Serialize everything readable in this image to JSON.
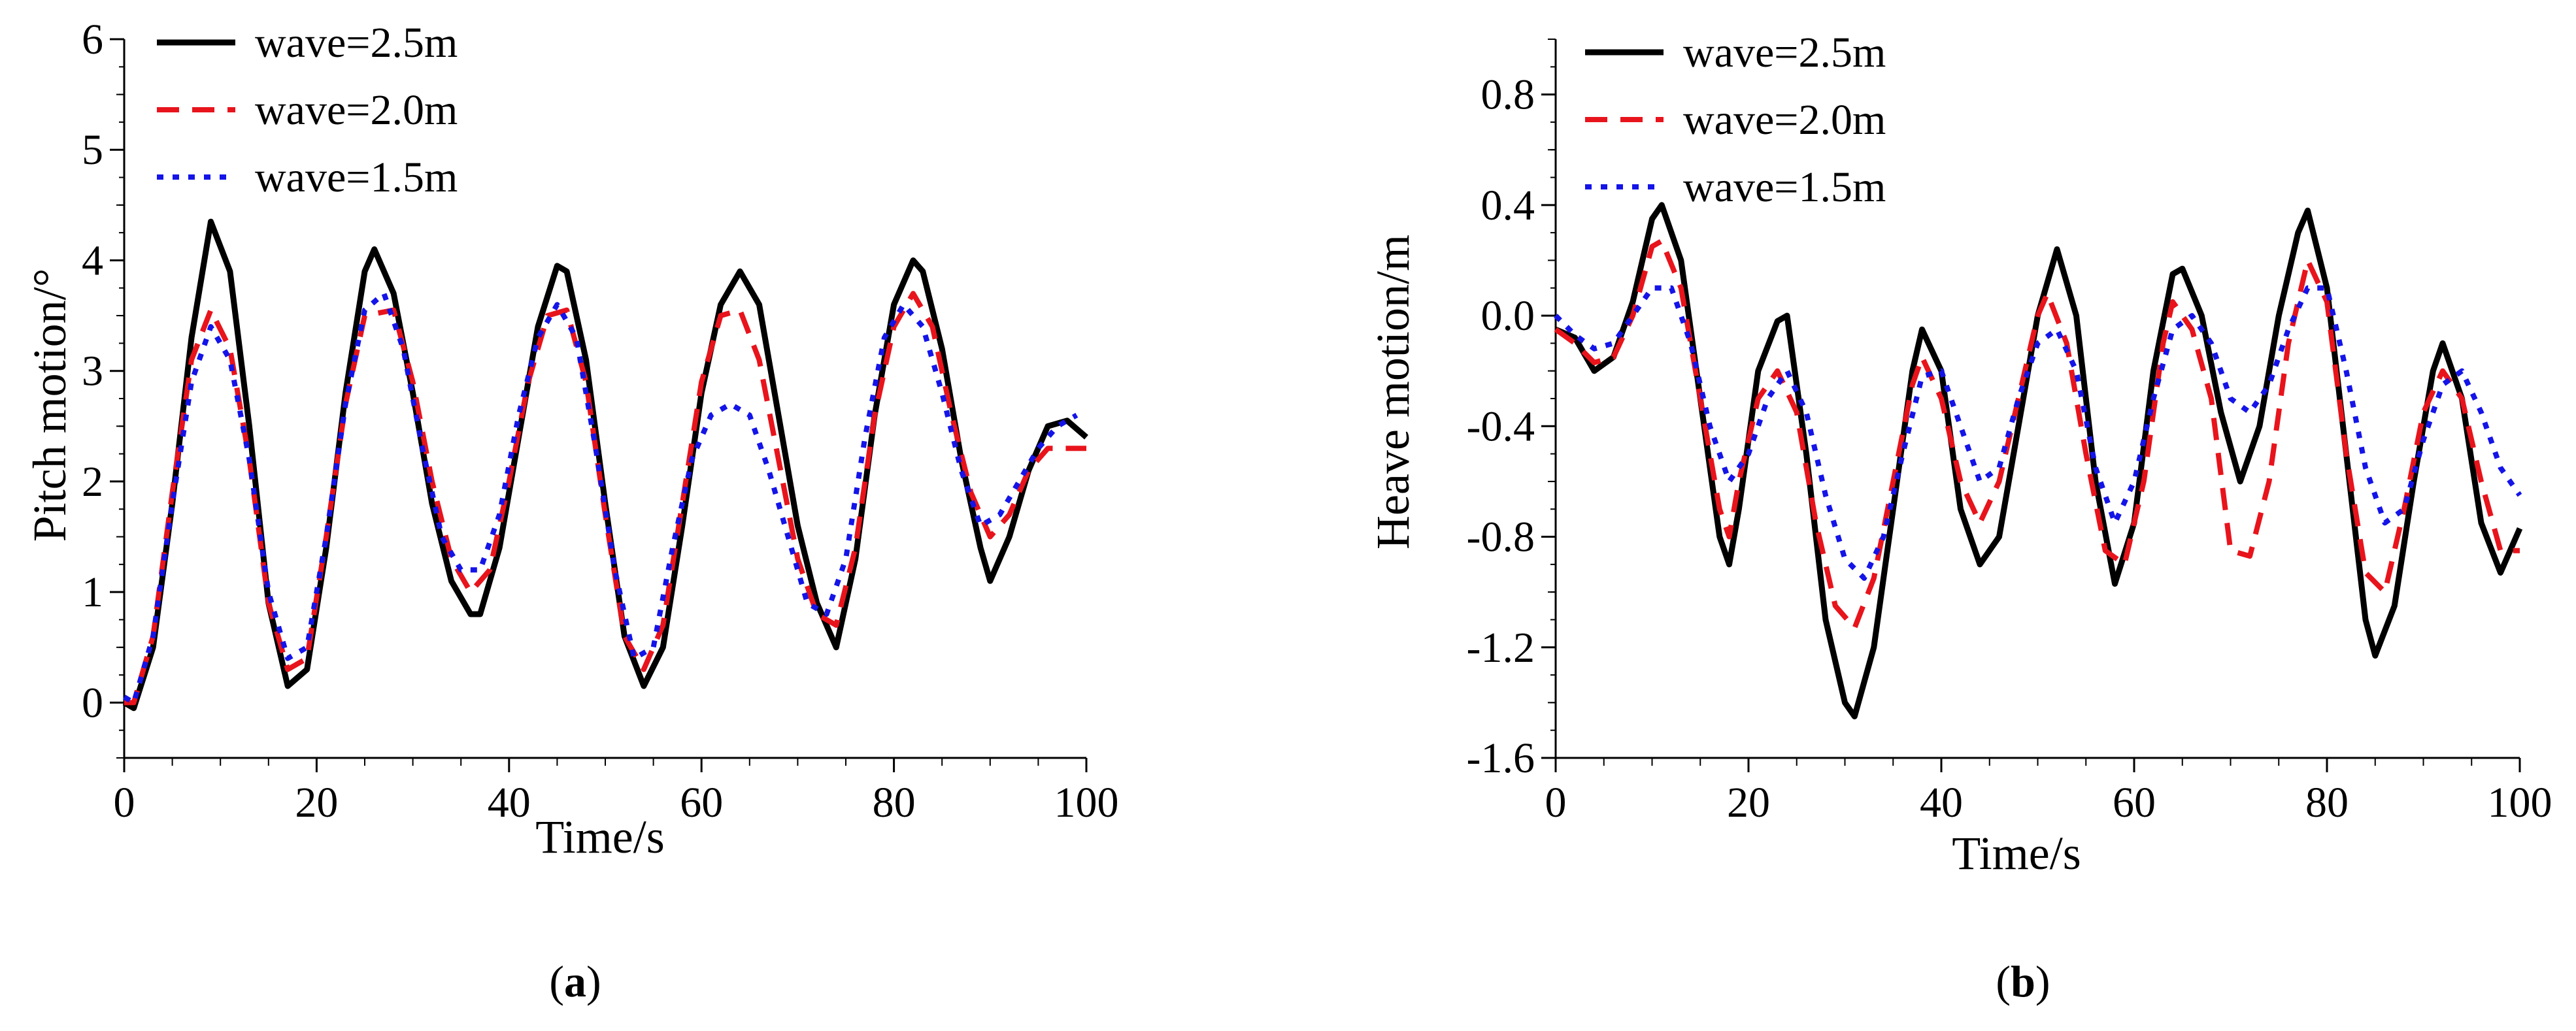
{
  "chart_data": [
    {
      "type": "line",
      "panel_label": "a",
      "xlabel": "Time/s",
      "ylabel": "Pitch motion/°",
      "xlim": [
        0,
        100
      ],
      "ylim": [
        -0.5,
        6
      ],
      "xticks": [
        0,
        20,
        40,
        60,
        80,
        100
      ],
      "yticks": [
        0,
        1,
        2,
        3,
        4,
        5,
        6
      ],
      "xtick_labels": [
        "0",
        "20",
        "40",
        "60",
        "80",
        "100"
      ],
      "ytick_labels": [
        "0",
        "1",
        "2",
        "3",
        "4",
        "5",
        "6"
      ],
      "legend_position": "top-left",
      "series": [
        {
          "name": "wave=2.5m",
          "color": "#000000",
          "style": "solid",
          "x": [
            0,
            1,
            3,
            5,
            7,
            9,
            11,
            13,
            15,
            17,
            19,
            21,
            23,
            25,
            26,
            28,
            30,
            32,
            34,
            36,
            37,
            39,
            41,
            43,
            45,
            46,
            48,
            50,
            52,
            54,
            56,
            58,
            60,
            62,
            64,
            66,
            68,
            70,
            72,
            74,
            76,
            78,
            80,
            82,
            83,
            85,
            87,
            89,
            90,
            92,
            94,
            96,
            98,
            100
          ],
          "y": [
            0.0,
            -0.05,
            0.5,
            1.8,
            3.3,
            4.35,
            3.9,
            2.5,
            0.9,
            0.15,
            0.3,
            1.4,
            2.8,
            3.9,
            4.1,
            3.7,
            2.8,
            1.8,
            1.1,
            0.8,
            0.8,
            1.4,
            2.4,
            3.4,
            3.95,
            3.9,
            3.1,
            1.8,
            0.6,
            0.15,
            0.5,
            1.6,
            2.8,
            3.6,
            3.9,
            3.6,
            2.6,
            1.6,
            0.9,
            0.5,
            1.3,
            2.6,
            3.6,
            4.0,
            3.9,
            3.2,
            2.2,
            1.4,
            1.1,
            1.5,
            2.1,
            2.5,
            2.55,
            2.4
          ]
        },
        {
          "name": "wave=2.0m",
          "color": "#e8141c",
          "style": "dashed",
          "x": [
            0,
            1,
            3,
            5,
            7,
            9,
            11,
            13,
            15,
            17,
            19,
            21,
            23,
            25,
            28,
            30,
            32,
            34,
            36,
            38,
            40,
            42,
            44,
            46,
            48,
            50,
            52,
            54,
            56,
            58,
            60,
            62,
            64,
            66,
            68,
            70,
            72,
            74,
            76,
            78,
            80,
            82,
            84,
            86,
            88,
            90,
            92,
            94,
            96,
            98,
            100
          ],
          "y": [
            0.0,
            0.0,
            0.6,
            1.9,
            3.1,
            3.55,
            3.2,
            2.2,
            0.9,
            0.3,
            0.4,
            1.5,
            2.7,
            3.5,
            3.55,
            2.9,
            2.0,
            1.3,
            1.0,
            1.2,
            2.0,
            2.9,
            3.5,
            3.55,
            2.9,
            1.7,
            0.6,
            0.3,
            0.7,
            1.8,
            2.9,
            3.5,
            3.55,
            3.1,
            2.2,
            1.3,
            0.8,
            0.7,
            1.4,
            2.6,
            3.4,
            3.7,
            3.4,
            2.6,
            1.9,
            1.5,
            1.7,
            2.1,
            2.3,
            2.3,
            2.3
          ]
        },
        {
          "name": "wave=1.5m",
          "color": "#1414e8",
          "style": "dotted",
          "x": [
            0,
            1,
            3,
            5,
            7,
            9,
            11,
            13,
            15,
            17,
            19,
            21,
            23,
            25,
            27,
            29,
            31,
            33,
            35,
            37,
            39,
            41,
            43,
            45,
            47,
            49,
            51,
            53,
            55,
            57,
            59,
            61,
            63,
            65,
            67,
            69,
            71,
            73,
            75,
            77,
            79,
            81,
            83,
            85,
            87,
            89,
            91,
            93,
            95,
            97,
            99
          ],
          "y": [
            0.05,
            0.0,
            0.6,
            1.8,
            2.9,
            3.4,
            3.1,
            2.2,
            1.0,
            0.4,
            0.5,
            1.5,
            2.7,
            3.55,
            3.7,
            3.2,
            2.3,
            1.5,
            1.2,
            1.2,
            1.7,
            2.6,
            3.3,
            3.6,
            3.3,
            2.3,
            1.2,
            0.4,
            0.5,
            1.4,
            2.2,
            2.6,
            2.7,
            2.6,
            2.1,
            1.5,
            0.9,
            0.8,
            1.3,
            2.4,
            3.3,
            3.6,
            3.4,
            2.8,
            2.1,
            1.6,
            1.7,
            2.0,
            2.3,
            2.5,
            2.6
          ]
        }
      ]
    },
    {
      "type": "line",
      "panel_label": "b",
      "xlabel": "Time/s",
      "ylabel": "Heave motion/m",
      "xlim": [
        0,
        100
      ],
      "ylim": [
        -1.6,
        1.0
      ],
      "xticks": [
        0,
        20,
        40,
        60,
        80,
        100
      ],
      "yticks": [
        -1.6,
        -1.2,
        -0.8,
        -0.4,
        0.0,
        0.4,
        0.8
      ],
      "xtick_labels": [
        "0",
        "20",
        "40",
        "60",
        "80",
        "100"
      ],
      "ytick_labels": [
        "-1.6",
        "-1.2",
        "-0.8",
        "-0.4",
        "0.0",
        "0.4",
        "0.8"
      ],
      "legend_position": "top-left",
      "series": [
        {
          "name": "wave=2.5m",
          "color": "#000000",
          "style": "solid",
          "x": [
            0,
            2,
            4,
            6,
            8,
            10,
            11,
            13,
            15,
            17,
            18,
            19,
            21,
            23,
            24,
            26,
            28,
            30,
            31,
            33,
            35,
            37,
            38,
            40,
            42,
            44,
            46,
            48,
            50,
            52,
            54,
            56,
            58,
            60,
            62,
            64,
            65,
            67,
            69,
            71,
            73,
            75,
            77,
            78,
            80,
            82,
            84,
            85,
            87,
            89,
            91,
            92,
            94,
            96,
            98,
            100
          ],
          "y": [
            -0.05,
            -0.08,
            -0.2,
            -0.15,
            0.05,
            0.35,
            0.4,
            0.2,
            -0.3,
            -0.8,
            -0.9,
            -0.7,
            -0.2,
            -0.02,
            0.0,
            -0.5,
            -1.1,
            -1.4,
            -1.45,
            -1.2,
            -0.7,
            -0.2,
            -0.05,
            -0.2,
            -0.7,
            -0.9,
            -0.8,
            -0.4,
            0.0,
            0.24,
            0.0,
            -0.6,
            -0.97,
            -0.75,
            -0.2,
            0.15,
            0.17,
            0.0,
            -0.35,
            -0.6,
            -0.4,
            0.0,
            0.3,
            0.38,
            0.1,
            -0.5,
            -1.1,
            -1.23,
            -1.05,
            -0.6,
            -0.2,
            -0.1,
            -0.3,
            -0.75,
            -0.93,
            -0.77
          ]
        },
        {
          "name": "wave=2.0m",
          "color": "#e8141c",
          "style": "dashed",
          "x": [
            0,
            2,
            4,
            6,
            8,
            10,
            11,
            13,
            15,
            17,
            18,
            19,
            21,
            23,
            25,
            27,
            29,
            31,
            33,
            35,
            37,
            38,
            40,
            42,
            44,
            46,
            48,
            50,
            51,
            53,
            55,
            57,
            59,
            61,
            63,
            64,
            66,
            68,
            70,
            72,
            74,
            76,
            78,
            80,
            82,
            84,
            86,
            88,
            90,
            92,
            94,
            96,
            98,
            100
          ],
          "y": [
            -0.05,
            -0.1,
            -0.17,
            -0.15,
            0.0,
            0.25,
            0.27,
            0.1,
            -0.3,
            -0.7,
            -0.8,
            -0.6,
            -0.3,
            -0.2,
            -0.35,
            -0.75,
            -1.05,
            -1.13,
            -0.95,
            -0.6,
            -0.25,
            -0.15,
            -0.3,
            -0.6,
            -0.75,
            -0.6,
            -0.3,
            0.0,
            0.08,
            -0.1,
            -0.5,
            -0.85,
            -0.9,
            -0.6,
            -0.1,
            0.05,
            -0.05,
            -0.3,
            -0.85,
            -0.87,
            -0.6,
            -0.1,
            0.2,
            0.05,
            -0.5,
            -0.93,
            -1.0,
            -0.7,
            -0.35,
            -0.2,
            -0.3,
            -0.6,
            -0.85,
            -0.85
          ]
        },
        {
          "name": "wave=1.5m",
          "color": "#1414e8",
          "style": "dotted",
          "x": [
            0,
            2,
            4,
            6,
            8,
            10,
            12,
            14,
            16,
            18,
            20,
            22,
            24,
            26,
            28,
            30,
            32,
            34,
            36,
            38,
            40,
            42,
            44,
            46,
            48,
            50,
            52,
            54,
            56,
            58,
            60,
            62,
            64,
            66,
            68,
            70,
            72,
            74,
            76,
            78,
            80,
            82,
            84,
            86,
            88,
            90,
            92,
            94,
            96,
            98,
            100
          ],
          "y": [
            0.0,
            -0.07,
            -0.12,
            -0.1,
            0.0,
            0.1,
            0.1,
            -0.1,
            -0.4,
            -0.6,
            -0.5,
            -0.3,
            -0.2,
            -0.35,
            -0.65,
            -0.88,
            -0.95,
            -0.8,
            -0.5,
            -0.22,
            -0.2,
            -0.4,
            -0.6,
            -0.55,
            -0.3,
            -0.1,
            -0.05,
            -0.2,
            -0.55,
            -0.75,
            -0.6,
            -0.3,
            -0.05,
            0.0,
            -0.1,
            -0.3,
            -0.35,
            -0.25,
            -0.05,
            0.1,
            0.1,
            -0.2,
            -0.55,
            -0.75,
            -0.7,
            -0.45,
            -0.25,
            -0.2,
            -0.35,
            -0.55,
            -0.65
          ]
        }
      ]
    }
  ]
}
